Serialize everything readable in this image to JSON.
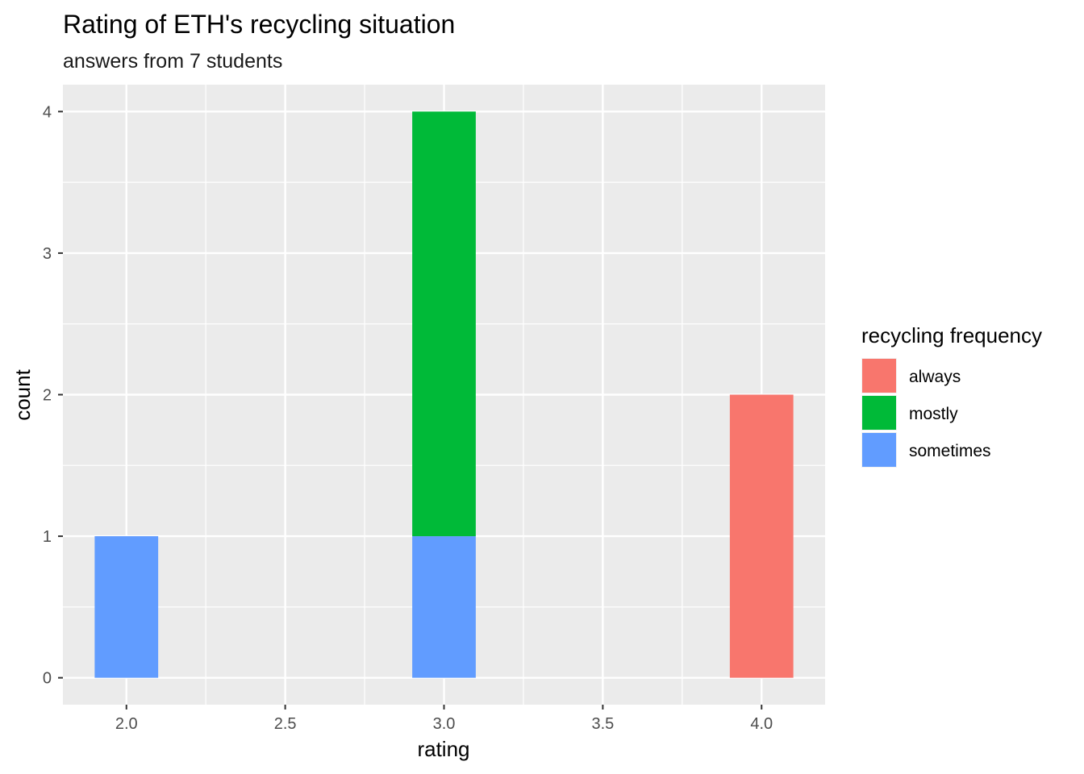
{
  "chart_data": {
    "type": "bar",
    "stacked": true,
    "title": "Rating of ETH's recycling situation",
    "subtitle": "answers from 7 students",
    "xlabel": "rating",
    "ylabel": "count",
    "xlim": [
      1.8,
      4.2
    ],
    "ylim": [
      -0.19,
      4.19
    ],
    "x_ticks": [
      2.0,
      2.5,
      3.0,
      3.5,
      4.0
    ],
    "x_tick_labels": [
      "2.0",
      "2.5",
      "3.0",
      "3.5",
      "4.0"
    ],
    "y_ticks": [
      0,
      1,
      2,
      3,
      4
    ],
    "y_tick_labels": [
      "0",
      "1",
      "2",
      "3",
      "4"
    ],
    "bar_width": 0.2,
    "grid": true,
    "legend": {
      "title": "recycling frequency",
      "position": "right",
      "entries": [
        {
          "label": "always",
          "color": "#F8766D"
        },
        {
          "label": "mostly",
          "color": "#00BA38"
        },
        {
          "label": "sometimes",
          "color": "#619CFF"
        }
      ]
    },
    "bars": [
      {
        "x": 2.0,
        "segments": [
          {
            "series": "sometimes",
            "value": 1
          }
        ]
      },
      {
        "x": 3.0,
        "segments": [
          {
            "series": "sometimes",
            "value": 1
          },
          {
            "series": "mostly",
            "value": 3
          }
        ]
      },
      {
        "x": 4.0,
        "segments": [
          {
            "series": "always",
            "value": 2
          }
        ]
      }
    ],
    "colors": {
      "panel_background": "#EBEBEB",
      "grid": "#FFFFFF",
      "tick": "#333333"
    }
  }
}
